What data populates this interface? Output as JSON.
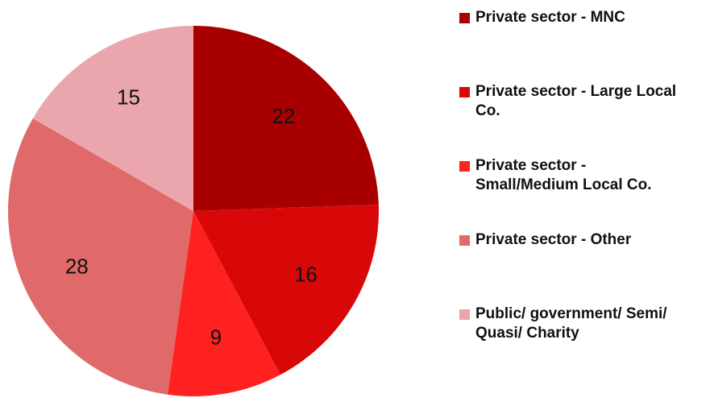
{
  "chart_data": {
    "type": "pie",
    "categories": [
      "Private sector - MNC",
      "Private sector - Large Local Co.",
      "Private sector - Small/Medium Local Co.",
      "Private sector - Other",
      "Public/ government/ Semi/ Quasi/ Charity"
    ],
    "values": [
      22,
      16,
      9,
      28,
      15
    ],
    "colors": [
      "#a80000",
      "#d80808",
      "#ff2020",
      "#e06a6a",
      "#eaa6ac"
    ],
    "legend": "right"
  }
}
